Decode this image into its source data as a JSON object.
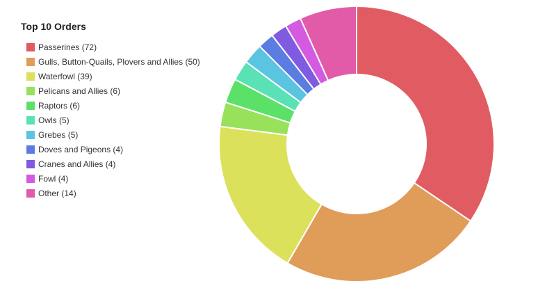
{
  "chart_data": {
    "type": "donut",
    "title": "Top 10 Orders",
    "categories": [
      "Passerines",
      "Gulls, Button-Quails, Plovers and Allies",
      "Waterfowl",
      "Pelicans and Allies",
      "Raptors",
      "Owls",
      "Grebes",
      "Doves and Pigeons",
      "Cranes and Allies",
      "Fowl",
      "Other"
    ],
    "values": [
      72,
      50,
      39,
      6,
      6,
      5,
      5,
      4,
      4,
      4,
      14
    ],
    "value_labels": [
      "(72)",
      "(50)",
      "(39)",
      "(6)",
      "(6)",
      "(5)",
      "(5)",
      "(4)",
      "(4)",
      "(4)",
      "(14)"
    ],
    "colors": [
      "#e15b62",
      "#e09c59",
      "#dce15b",
      "#98e15b",
      "#5be168",
      "#5be1b6",
      "#5bc4e1",
      "#5b7ce1",
      "#7f5be1",
      "#d45be1",
      "#e15ba8"
    ],
    "legend": "left"
  }
}
